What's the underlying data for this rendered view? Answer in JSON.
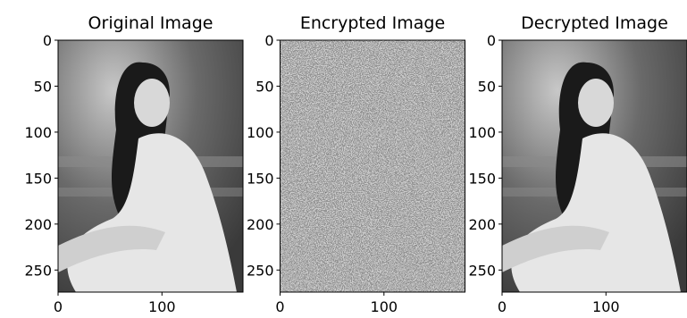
{
  "chart_data": [
    {
      "type": "image",
      "title": "Original Image",
      "xlim": [
        0,
        178
      ],
      "ylim": [
        274,
        0
      ],
      "xticks": [
        0,
        100
      ],
      "yticks": [
        0,
        50,
        100,
        150,
        200,
        250
      ]
    },
    {
      "type": "image",
      "title": "Encrypted Image",
      "xlim": [
        0,
        178
      ],
      "ylim": [
        274,
        0
      ],
      "xticks": [
        0,
        100
      ],
      "yticks": [
        0,
        50,
        100,
        150,
        200,
        250
      ]
    },
    {
      "type": "image",
      "title": "Decrypted Image",
      "xlim": [
        0,
        178
      ],
      "ylim": [
        274,
        0
      ],
      "xticks": [
        0,
        100
      ],
      "yticks": [
        0,
        50,
        100,
        150,
        200,
        250
      ]
    }
  ]
}
